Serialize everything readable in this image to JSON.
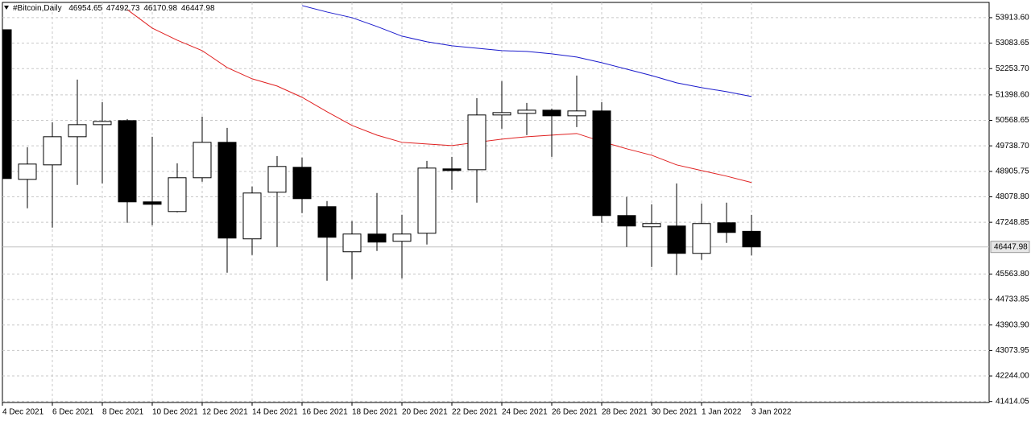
{
  "header": {
    "symbol": "#Bitcoin,Daily",
    "ohlc": [
      46954.65,
      47492.73,
      46170.98,
      46447.98
    ]
  },
  "chart_data": {
    "type": "candlestick",
    "categories": [
      "4 Dec 2021",
      null,
      "6 Dec 2021",
      null,
      "8 Dec 2021",
      null,
      "10 Dec 2021",
      null,
      "12 Dec 2021",
      null,
      "14 Dec 2021",
      null,
      "16 Dec 2021",
      null,
      "18 Dec 2021",
      null,
      "20 Dec 2021",
      null,
      "22 Dec 2021",
      null,
      "24 Dec 2021",
      null,
      "26 Dec 2021",
      null,
      "28 Dec 2021",
      null,
      "30 Dec 2021",
      null,
      "1 Jan 2022",
      null,
      "3 Jan 2022"
    ],
    "open": [
      53520,
      48647,
      49119,
      50036,
      50429,
      50560,
      47914,
      47599,
      48700,
      49853,
      46709,
      48228,
      49040,
      47757,
      46289,
      46866,
      46630,
      46892,
      48988,
      48961,
      50744,
      50796,
      50900,
      50717,
      50875,
      47468,
      47102,
      47128,
      46237,
      47233,
      46954.65
    ],
    "high": [
      53704,
      49695,
      50508,
      51896,
      51163,
      50613,
      50036,
      49171,
      50691,
      50324,
      48412,
      49407,
      49355,
      47940,
      47285,
      48202,
      47495,
      49250,
      49381,
      51294,
      51844,
      51137,
      50953,
      52027,
      51163,
      48071,
      47835,
      48516,
      47861,
      47887,
      47492.73
    ],
    "low": [
      48600,
      47704,
      47075,
      48464,
      48516,
      47233,
      47154,
      47573,
      48569,
      45608,
      46184,
      46447,
      47547,
      45346,
      45399,
      46316,
      45425,
      46525,
      48307,
      47887,
      50298,
      50088,
      49381,
      50350,
      47233,
      46447,
      45792,
      45530,
      46027,
      46577,
      46170.98
    ],
    "close": [
      48674,
      49145,
      50036,
      50429,
      50534,
      47914,
      47835,
      48700,
      49853,
      46735,
      48202,
      49067,
      48019,
      46761,
      46866,
      46604,
      46866,
      49014,
      48935,
      50744,
      50822,
      50900,
      50717,
      50875,
      47468,
      47128,
      47207,
      46237,
      47207,
      46918,
      46447.98
    ],
    "up_color": "#ffffff",
    "down_color": "#000000",
    "lines": [
      {
        "color": "#e02020",
        "values": [
          null,
          null,
          null,
          null,
          null,
          54176,
          53573,
          53180,
          52839,
          52289,
          51922,
          51687,
          51320,
          50848,
          50403,
          50088,
          49853,
          49800,
          49748,
          49853,
          49957,
          50036,
          50088,
          50141,
          49879,
          49643,
          49434,
          49119,
          48935,
          48752,
          48543
        ]
      },
      {
        "color": "#1a1acc",
        "values": [
          null,
          null,
          null,
          null,
          null,
          null,
          null,
          null,
          null,
          null,
          null,
          null,
          54307,
          54097,
          53914,
          53625,
          53311,
          53128,
          52997,
          52918,
          52839,
          52813,
          52735,
          52630,
          52446,
          52237,
          52027,
          51792,
          51634,
          51503,
          51346
        ]
      }
    ],
    "current_price": 46447.98,
    "ylim": [
      41380,
      54410
    ],
    "yticks": [
      {
        "value": 53913.6,
        "label": "53913.60"
      },
      53083.65,
      {
        "value": 52253.7,
        "label": "52253.70"
      },
      {
        "value": 51398.6,
        "label": "51398.60"
      },
      50568.65,
      {
        "value": 49738.7,
        "label": "49738.70"
      },
      48905.75,
      {
        "value": 48078.8,
        "label": "48078.80"
      },
      47248.85,
      {
        "value": 45563.8,
        "label": "45563.80"
      },
      44733.85,
      {
        "value": 43903.9,
        "label": "43903.90"
      },
      43073.95,
      {
        "value": 42244,
        "label": "42244.00"
      },
      41414.05
    ],
    "grid": true
  }
}
